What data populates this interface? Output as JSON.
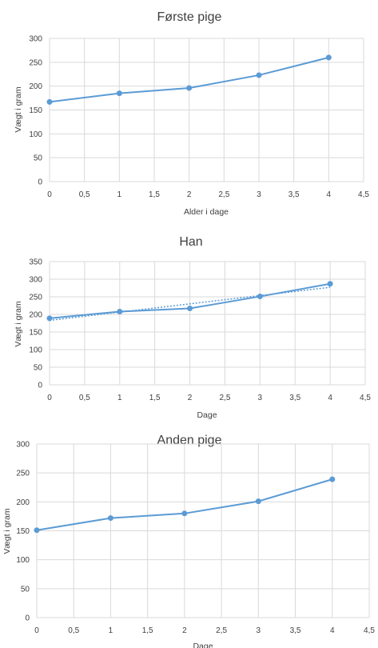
{
  "chart_data": [
    {
      "type": "line",
      "title": "Første pige",
      "xlabel": "Alder i dage",
      "ylabel": "Vægt i gram",
      "xlim": [
        0,
        4.5
      ],
      "ylim": [
        0,
        300
      ],
      "x_ticks": [
        "0",
        "0,5",
        "1",
        "1,5",
        "2",
        "2,5",
        "3",
        "3,5",
        "4",
        "4,5"
      ],
      "y_ticks": [
        "0",
        "50",
        "100",
        "150",
        "200",
        "250",
        "300"
      ],
      "grid": true,
      "color": "#5b9bd5",
      "series": [
        {
          "x": [
            0,
            1,
            2,
            3,
            4
          ],
          "values": [
            167,
            185,
            196,
            223,
            260
          ]
        }
      ]
    },
    {
      "type": "line",
      "title": "Han",
      "xlabel": "Dage",
      "ylabel": "Vægt i gram",
      "xlim": [
        0,
        4.5
      ],
      "ylim": [
        0,
        350
      ],
      "x_ticks": [
        "0",
        "0,5",
        "1",
        "1,5",
        "2",
        "2,5",
        "3",
        "3,5",
        "4",
        "4,5"
      ],
      "y_ticks": [
        "0",
        "50",
        "100",
        "150",
        "200",
        "250",
        "300",
        "350"
      ],
      "grid": true,
      "color": "#5b9bd5",
      "series": [
        {
          "x": [
            0,
            1,
            2,
            3,
            4
          ],
          "values": [
            189,
            208,
            217,
            251,
            287
          ]
        }
      ],
      "trendline": {
        "type": "linear",
        "x": [
          0,
          4
        ],
        "values": [
          183,
          277
        ]
      }
    },
    {
      "type": "line",
      "title": "Anden pige",
      "xlabel": "Dage",
      "ylabel": "Vægt i gram",
      "xlim": [
        0,
        4.5
      ],
      "ylim": [
        0,
        300
      ],
      "x_ticks": [
        "0",
        "0,5",
        "1",
        "1,5",
        "2",
        "2,5",
        "3",
        "3,5",
        "4",
        "4,5"
      ],
      "y_ticks": [
        "0",
        "50",
        "100",
        "150",
        "200",
        "250",
        "300"
      ],
      "grid": true,
      "color": "#5b9bd5",
      "series": [
        {
          "x": [
            0,
            1,
            2,
            3,
            4
          ],
          "values": [
            151,
            172,
            180,
            201,
            239
          ]
        }
      ]
    }
  ]
}
